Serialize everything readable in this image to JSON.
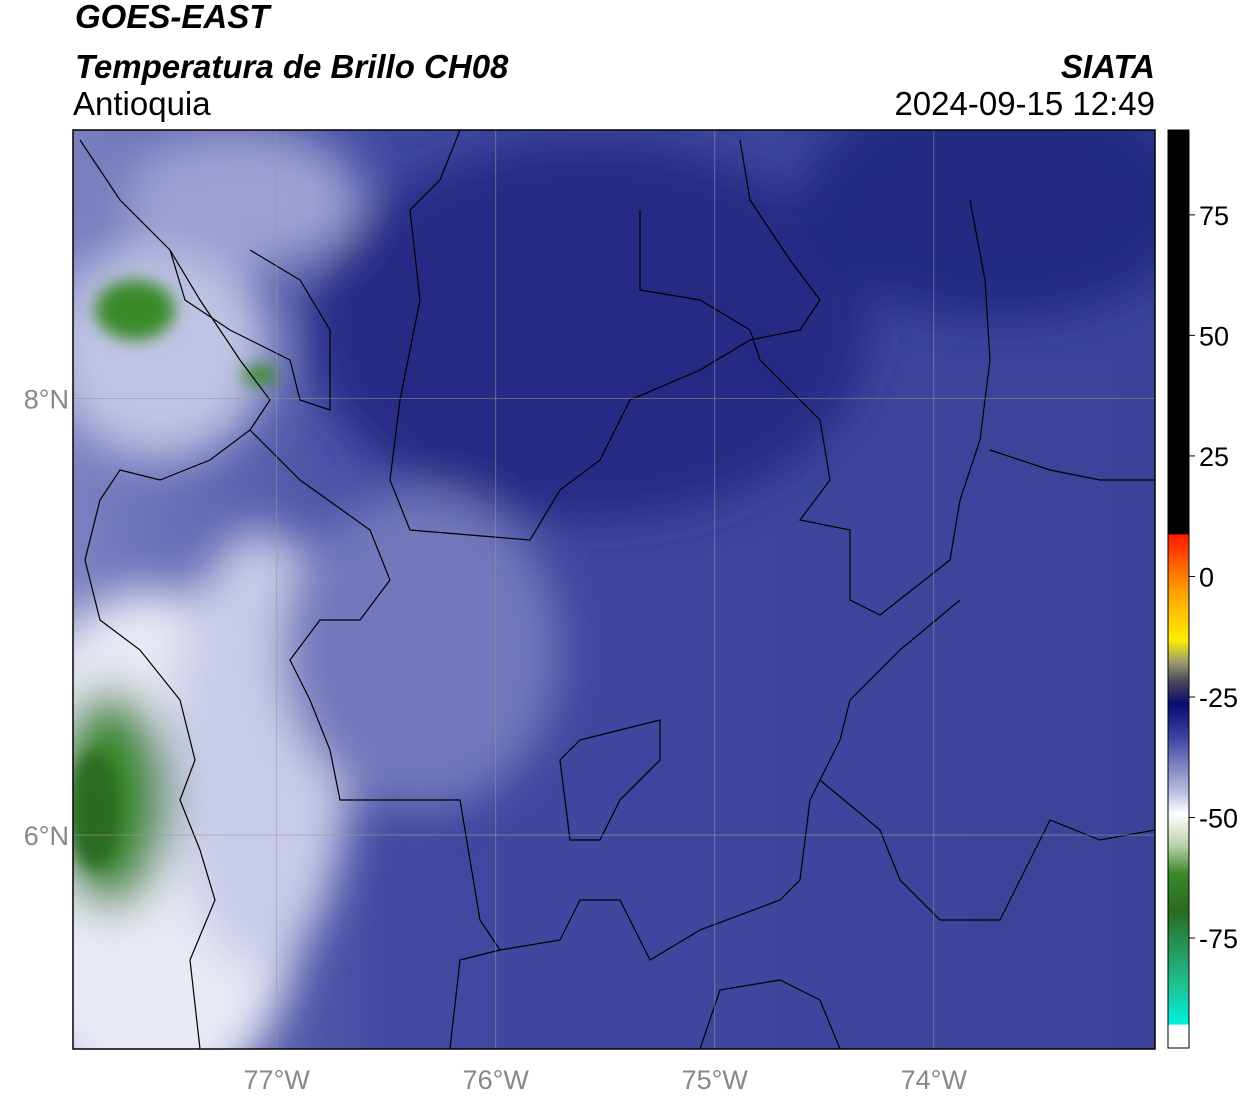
{
  "header": {
    "title": "GOES-EAST",
    "subtitle": "Temperatura de Brillo CH08",
    "region": "Antioquia",
    "source": "SIATA",
    "datetime": "2024-09-15 12:49"
  },
  "map": {
    "xlim": [
      -77.93,
      -72.99
    ],
    "ylim": [
      5.02,
      9.23
    ],
    "xticks": [
      {
        "value": -77,
        "label": "77°W"
      },
      {
        "value": -76,
        "label": "76°W"
      },
      {
        "value": -75,
        "label": "75°W"
      },
      {
        "value": -74,
        "label": "74°W"
      }
    ],
    "yticks": [
      {
        "value": 8,
        "label": "8°N"
      },
      {
        "value": 6,
        "label": "6°N"
      }
    ],
    "grid": true
  },
  "colorbar": {
    "lim": [
      -97.8,
      92.6
    ],
    "ticks": [
      75,
      50,
      25,
      0,
      -25,
      -50,
      -75
    ]
  }
}
